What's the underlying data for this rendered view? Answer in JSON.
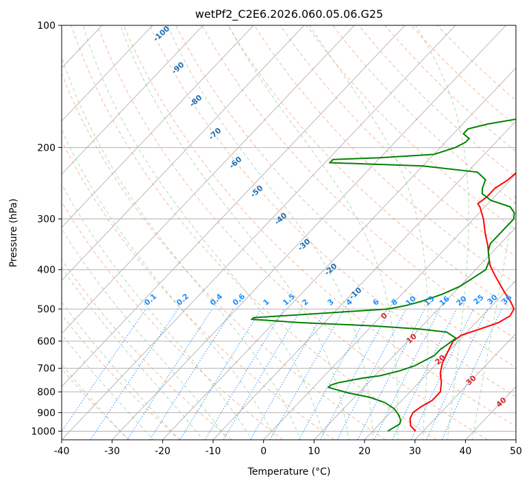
{
  "chart_data": {
    "type": "line",
    "title": "wetPf2_C2E6.2026.060.05.06.G25",
    "xlabel": "Temperature (°C)",
    "ylabel": "Pressure (hPa)",
    "xlim": [
      -40,
      50
    ],
    "ylim": [
      1050,
      100
    ],
    "y_scale": "log",
    "grid": true,
    "x_ticks": [
      "-40",
      "-30",
      "-20",
      "-10",
      "0",
      "10",
      "20",
      "30",
      "40",
      "50"
    ],
    "y_ticks": [
      "100",
      "200",
      "300",
      "400",
      "500",
      "600",
      "700",
      "800",
      "900",
      "1000"
    ],
    "background_lines": {
      "dry_adiabat_labels": [
        "-100",
        "-90",
        "-80",
        "-70",
        "-60",
        "-50",
        "-40",
        "-30",
        "-20",
        "-10"
      ],
      "moist_adiabat_labels": [
        "0",
        "10",
        "20",
        "30",
        "40"
      ],
      "mixing_ratio_labels": [
        "0.1",
        "0.2",
        "0.4",
        "0.6",
        "1",
        "1.5",
        "2",
        "3",
        "4",
        "6",
        "8",
        "10",
        "13",
        "16",
        "20",
        "25",
        "30",
        "36"
      ]
    },
    "series": [
      {
        "color": "#ff0000",
        "points": [
          [
            28.5,
            1000
          ],
          [
            26.5,
            970
          ],
          [
            25,
            930
          ],
          [
            24.5,
            900
          ],
          [
            25,
            870
          ],
          [
            26,
            840
          ],
          [
            26,
            800
          ],
          [
            24.5,
            760
          ],
          [
            22.5,
            720
          ],
          [
            21,
            680
          ],
          [
            20,
            640
          ],
          [
            19,
            600
          ],
          [
            19.5,
            580
          ],
          [
            22,
            560
          ],
          [
            24.5,
            540
          ],
          [
            25.5,
            520
          ],
          [
            25,
            500
          ],
          [
            23,
            480
          ],
          [
            20,
            455
          ],
          [
            17,
            430
          ],
          [
            14.5,
            410
          ],
          [
            12,
            390
          ],
          [
            10,
            370
          ],
          [
            8,
            350
          ],
          [
            5,
            325
          ],
          [
            2,
            300
          ],
          [
            -1,
            280
          ],
          [
            -2,
            275
          ],
          [
            -1.5,
            265
          ],
          [
            -1.5,
            252
          ],
          [
            -0.5,
            240
          ],
          [
            -0.2,
            230
          ],
          [
            -0.5,
            220
          ],
          [
            -1.5,
            210
          ],
          [
            -2.5,
            200
          ],
          [
            -3.5,
            190
          ],
          [
            -5,
            180
          ],
          [
            -6,
            170
          ],
          [
            -7,
            160
          ],
          [
            -8,
            150
          ],
          [
            -9,
            140
          ],
          [
            -9.5,
            130
          ],
          [
            -10,
            120
          ],
          [
            -10,
            110
          ],
          [
            -10,
            105
          ],
          [
            -10,
            100
          ]
        ]
      },
      {
        "color": "#008000",
        "points": [
          [
            23,
            1000
          ],
          [
            23.5,
            980
          ],
          [
            24,
            960
          ],
          [
            23.5,
            940
          ],
          [
            22,
            910
          ],
          [
            20,
            880
          ],
          [
            17,
            850
          ],
          [
            13,
            825
          ],
          [
            8,
            805
          ],
          [
            5,
            790
          ],
          [
            3,
            780
          ],
          [
            3,
            770
          ],
          [
            4,
            760
          ],
          [
            6,
            750
          ],
          [
            8,
            740
          ],
          [
            11,
            730
          ],
          [
            14,
            710
          ],
          [
            16,
            690
          ],
          [
            17,
            670
          ],
          [
            18,
            650
          ],
          [
            18,
            630
          ],
          [
            18.5,
            610
          ],
          [
            19,
            590
          ],
          [
            16,
            570
          ],
          [
            10,
            560
          ],
          [
            0,
            550
          ],
          [
            -15,
            540
          ],
          [
            -25,
            530
          ],
          [
            -25,
            525
          ],
          [
            -20,
            520
          ],
          [
            -10,
            510
          ],
          [
            0,
            500
          ],
          [
            3,
            490
          ],
          [
            5,
            480
          ],
          [
            8,
            460
          ],
          [
            10,
            440
          ],
          [
            11,
            420
          ],
          [
            12,
            400
          ],
          [
            11,
            380
          ],
          [
            9,
            360
          ],
          [
            8,
            345
          ],
          [
            8,
            330
          ],
          [
            8,
            315
          ],
          [
            8,
            300
          ],
          [
            7,
            290
          ],
          [
            5,
            280
          ],
          [
            0,
            270
          ],
          [
            -3,
            260
          ],
          [
            -4,
            252
          ],
          [
            -5,
            240
          ],
          [
            -8,
            230
          ],
          [
            -20,
            222
          ],
          [
            -39,
            218
          ],
          [
            -39,
            214
          ],
          [
            -30,
            212
          ],
          [
            -20,
            208
          ],
          [
            -17,
            200
          ],
          [
            -16,
            194
          ],
          [
            -16,
            190
          ],
          [
            -18,
            185
          ],
          [
            -18,
            180
          ],
          [
            -15,
            175
          ],
          [
            -10,
            170
          ],
          [
            -6,
            160
          ],
          [
            -4,
            150
          ],
          [
            -3,
            140
          ],
          [
            -2,
            130
          ],
          [
            -1,
            120
          ],
          [
            0,
            110
          ],
          [
            2,
            104
          ],
          [
            3,
            100
          ]
        ]
      }
    ]
  }
}
